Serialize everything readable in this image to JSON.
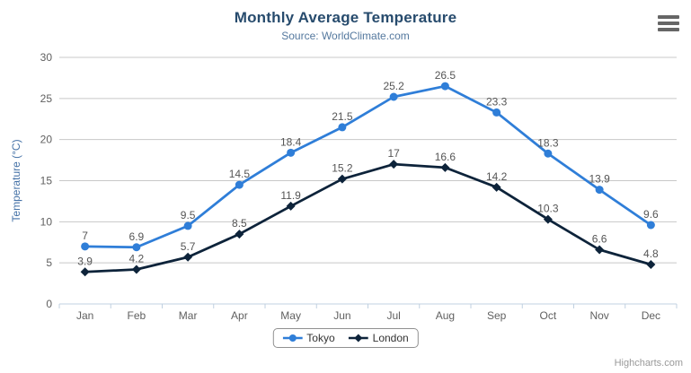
{
  "header": {
    "title": "Monthly Average Temperature",
    "subtitle": "Source: WorldClimate.com"
  },
  "credits": {
    "text": "Highcharts.com"
  },
  "exporting": {
    "menu_icon": "hamburger-menu-icon"
  },
  "chart_data": {
    "type": "line",
    "title": "Monthly Average Temperature",
    "subtitle": "Source: WorldClimate.com",
    "categories": [
      "Jan",
      "Feb",
      "Mar",
      "Apr",
      "May",
      "Jun",
      "Jul",
      "Aug",
      "Sep",
      "Oct",
      "Nov",
      "Dec"
    ],
    "series": [
      {
        "name": "Tokyo",
        "marker": "circle",
        "color": "#2f7ed8",
        "values": [
          7,
          6.9,
          9.5,
          14.5,
          18.4,
          21.5,
          25.2,
          26.5,
          23.3,
          18.3,
          13.9,
          9.6
        ]
      },
      {
        "name": "London",
        "marker": "diamond",
        "color": "#0d233a",
        "values": [
          3.9,
          4.2,
          5.7,
          8.5,
          11.9,
          15.2,
          17,
          16.6,
          14.2,
          10.3,
          6.6,
          4.8
        ]
      }
    ],
    "xlabel": "",
    "ylabel": "Temperature (°C)",
    "ylim": [
      0,
      30
    ],
    "yticks": [
      0,
      5,
      10,
      15,
      20,
      25,
      30
    ],
    "grid": true,
    "data_labels_shown": true,
    "legend_position": "bottom-center",
    "colors": {
      "title": "#274b6d",
      "subtitle": "#54789e",
      "axis_title": "#4572a7",
      "tick_label": "#606060",
      "grid_line": "#c8c8c8",
      "axis_line": "#c0d0e0",
      "data_label": "#555555",
      "legend_border": "#909090",
      "legend_text": "#333333",
      "credits": "#999999",
      "menu_icon": "#666666",
      "background": "#ffffff"
    }
  }
}
